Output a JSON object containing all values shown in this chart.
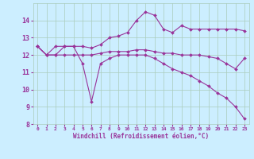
{
  "xlabel": "Windchill (Refroidissement éolien,°C)",
  "background_color": "#cceeff",
  "grid_color": "#aaccbb",
  "line_color": "#993399",
  "xlim": [
    -0.5,
    23.5
  ],
  "ylim": [
    8,
    15
  ],
  "yticks": [
    8,
    9,
    10,
    11,
    12,
    13,
    14
  ],
  "xticks": [
    0,
    1,
    2,
    3,
    4,
    5,
    6,
    7,
    8,
    9,
    10,
    11,
    12,
    13,
    14,
    15,
    16,
    17,
    18,
    19,
    20,
    21,
    22,
    23
  ],
  "series": [
    {
      "x": [
        0,
        1,
        2,
        3,
        4,
        5,
        6,
        7,
        8,
        9,
        10,
        11,
        12,
        13,
        14,
        15,
        16,
        17,
        18,
        19,
        20,
        21,
        22,
        23
      ],
      "y": [
        12.5,
        12.0,
        12.5,
        12.5,
        12.5,
        12.5,
        12.4,
        12.6,
        13.0,
        13.1,
        13.3,
        14.0,
        14.5,
        14.3,
        13.5,
        13.3,
        13.7,
        13.5,
        13.5,
        13.5,
        13.5,
        13.5,
        13.5,
        13.4
      ]
    },
    {
      "x": [
        0,
        1,
        2,
        3,
        4,
        5,
        6,
        7,
        8,
        9,
        10,
        11,
        12,
        13,
        14,
        15,
        16,
        17,
        18,
        19,
        20,
        21,
        22,
        23
      ],
      "y": [
        12.5,
        12.0,
        12.0,
        12.0,
        12.0,
        12.0,
        12.0,
        12.1,
        12.2,
        12.2,
        12.2,
        12.3,
        12.3,
        12.2,
        12.1,
        12.1,
        12.0,
        12.0,
        12.0,
        11.9,
        11.8,
        11.5,
        11.2,
        11.8
      ]
    },
    {
      "x": [
        0,
        1,
        2,
        3,
        4,
        5,
        6,
        7,
        8,
        9,
        10,
        11,
        12,
        13,
        14,
        15,
        16,
        17,
        18,
        19,
        20,
        21,
        22,
        23
      ],
      "y": [
        12.5,
        12.0,
        12.0,
        12.5,
        12.5,
        11.5,
        9.3,
        11.5,
        11.8,
        12.0,
        12.0,
        12.0,
        12.0,
        11.8,
        11.5,
        11.2,
        11.0,
        10.8,
        10.5,
        10.2,
        9.8,
        9.5,
        9.0,
        8.3
      ]
    }
  ]
}
